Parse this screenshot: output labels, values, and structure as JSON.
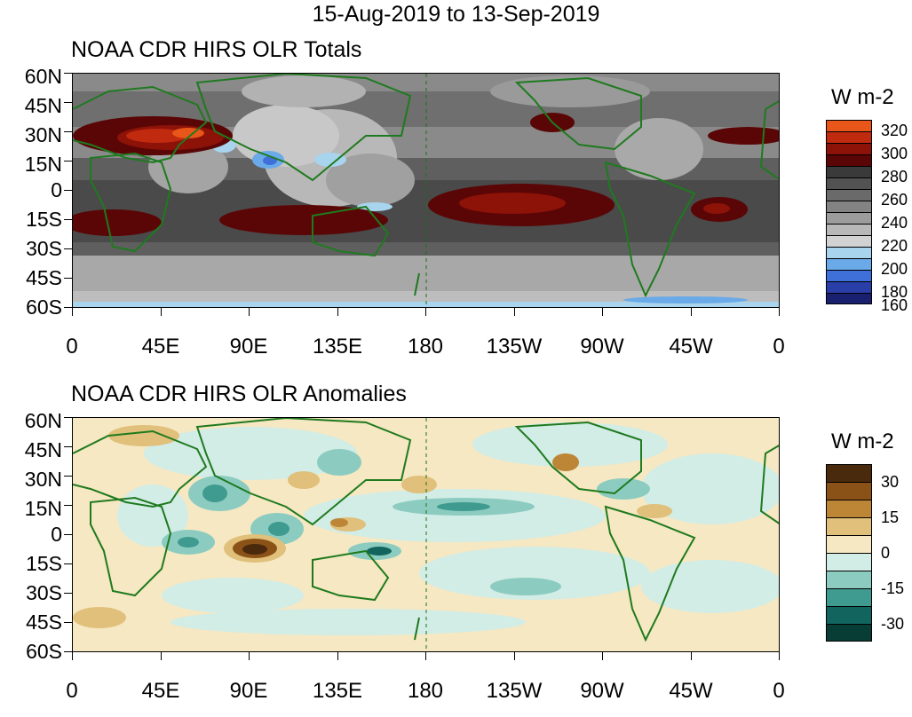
{
  "main_title": "15-Aug-2019 to 13-Sep-2019",
  "lat_labels": [
    "60N",
    "45N",
    "30N",
    "15N",
    "0",
    "15S",
    "30S",
    "45S",
    "60S"
  ],
  "lon_labels": [
    "0",
    "45E",
    "90E",
    "135E",
    "180",
    "135W",
    "90W",
    "45W",
    "0"
  ],
  "colors": {
    "land_outline": "#1f7a1f",
    "dateline": "#1f6f1f"
  },
  "panels": [
    {
      "title": "NOAA CDR HIRS OLR Totals",
      "colorbar": {
        "title": "W m-2",
        "colors": [
          "#e8561a",
          "#c02a0f",
          "#8d1208",
          "#5a0606",
          "#3a3a3a",
          "#525252",
          "#6a6a6a",
          "#838383",
          "#9c9c9c",
          "#b8b8b8",
          "#d2d2d2",
          "#a8d4ee",
          "#6aaae8",
          "#3f6fd8",
          "#2a3ea8",
          "#1a2070"
        ],
        "labels": [
          "320",
          "300",
          "280",
          "260",
          "240",
          "220",
          "200",
          "180",
          "160"
        ]
      }
    },
    {
      "title": "NOAA CDR HIRS OLR Anomalies",
      "colorbar": {
        "title": "W m-2",
        "colors": [
          "#4a2a0c",
          "#8a5216",
          "#bd8636",
          "#e0c07a",
          "#f6e8c2",
          "#d2ece6",
          "#8cccc0",
          "#3f9a90",
          "#11655e",
          "#073d35"
        ],
        "labels": [
          "30",
          "15",
          "0",
          "-15",
          "-30"
        ]
      }
    }
  ]
}
